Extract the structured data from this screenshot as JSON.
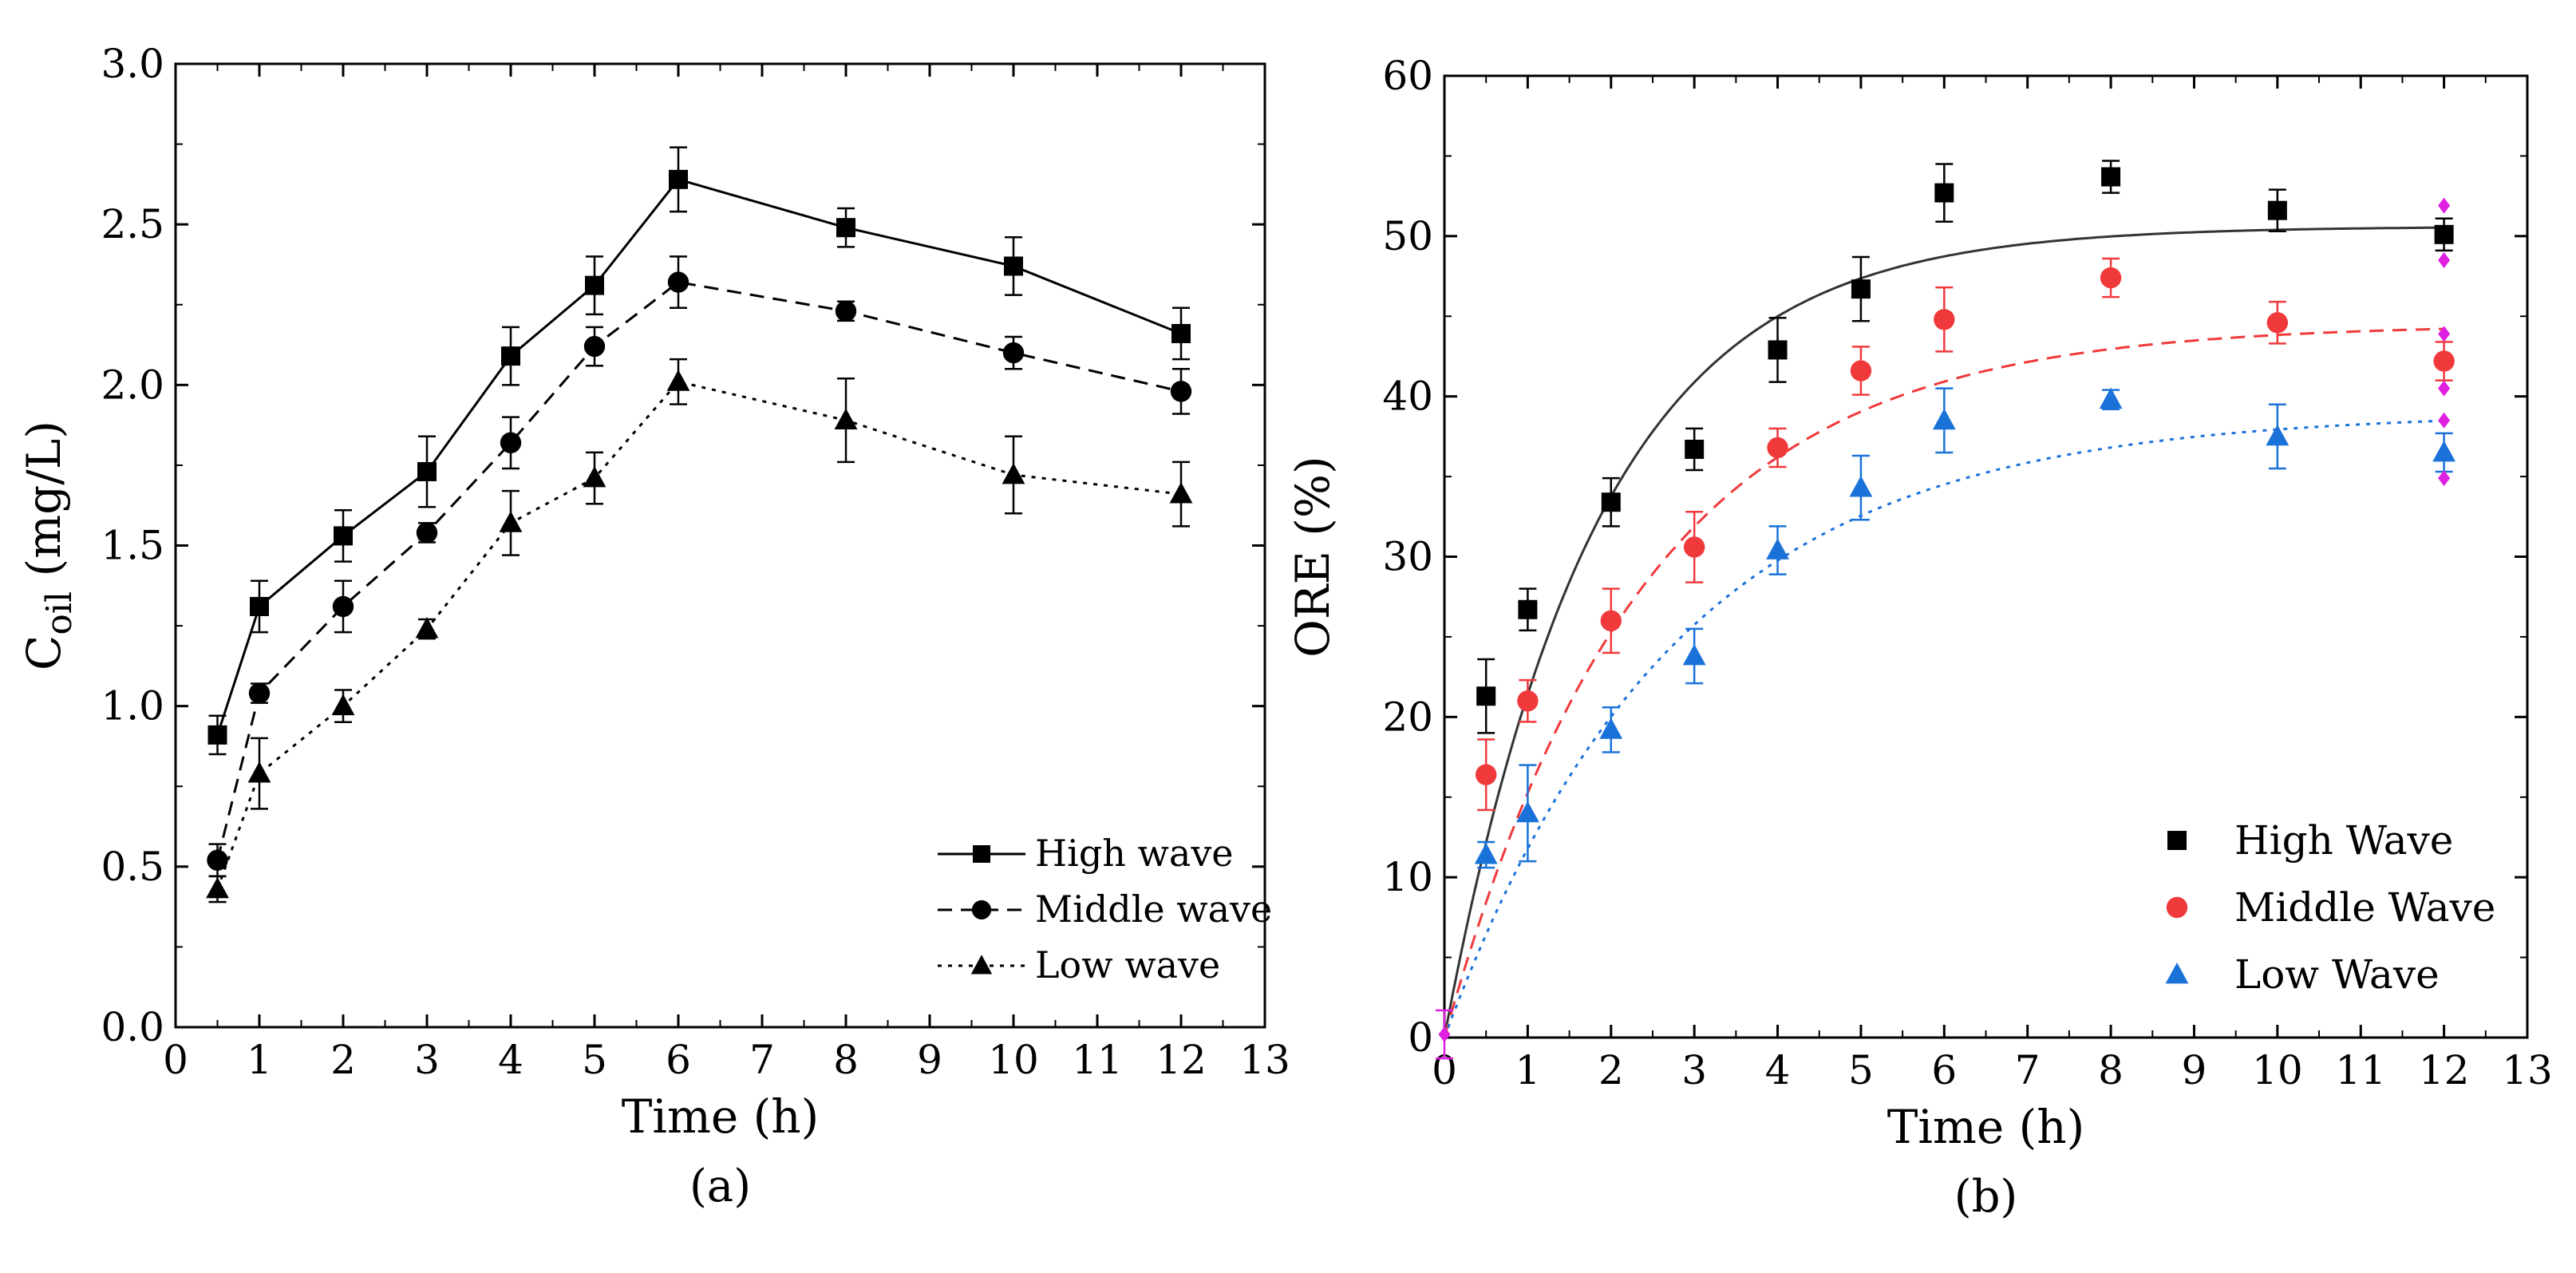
{
  "chart_data": [
    {
      "id": "a",
      "type": "line",
      "panel_label": "(a)",
      "xlabel": "Time (h)",
      "ylabel_main": "C",
      "ylabel_sub": "oil",
      "ylabel_unit": " (mg/L)",
      "xlim": [
        0,
        13
      ],
      "ylim": [
        0,
        3.0
      ],
      "xticks": [
        "0",
        "1",
        "2",
        "3",
        "4",
        "5",
        "6",
        "7",
        "8",
        "9",
        "10",
        "11",
        "12",
        "13"
      ],
      "yticks": [
        "0.0",
        "0.5",
        "1.0",
        "1.5",
        "2.0",
        "2.5",
        "3.0"
      ],
      "legend_position": "bottom-right",
      "x": [
        0.5,
        1,
        2,
        3,
        4,
        5,
        6,
        8,
        10,
        12
      ],
      "series": [
        {
          "name": "High wave",
          "marker": "square",
          "line": "solid",
          "values": [
            0.91,
            1.31,
            1.53,
            1.73,
            2.09,
            2.31,
            2.64,
            2.49,
            2.37,
            2.16
          ],
          "errors": [
            0.06,
            0.08,
            0.08,
            0.11,
            0.09,
            0.09,
            0.1,
            0.06,
            0.09,
            0.08
          ]
        },
        {
          "name": "Middle wave",
          "marker": "circle",
          "line": "dashed",
          "values": [
            0.52,
            1.04,
            1.31,
            1.54,
            1.82,
            2.12,
            2.32,
            2.23,
            2.1,
            1.98
          ],
          "errors": [
            0.05,
            0.03,
            0.08,
            0.03,
            0.08,
            0.06,
            0.08,
            0.03,
            0.05,
            0.07
          ]
        },
        {
          "name": "Low wave",
          "marker": "triangle",
          "line": "dotted",
          "values": [
            0.43,
            0.79,
            1.0,
            1.24,
            1.57,
            1.71,
            2.01,
            1.89,
            1.72,
            1.66
          ],
          "errors": [
            0.04,
            0.11,
            0.05,
            0.03,
            0.1,
            0.08,
            0.07,
            0.13,
            0.12,
            0.1
          ]
        }
      ]
    },
    {
      "id": "b",
      "type": "scatter",
      "panel_label": "(b)",
      "xlabel": "Time (h)",
      "ylabel": "ORE (%)",
      "xlim": [
        0,
        13
      ],
      "ylim": [
        0,
        60
      ],
      "xticks": [
        "0",
        "1",
        "2",
        "3",
        "4",
        "5",
        "6",
        "7",
        "8",
        "9",
        "10",
        "11",
        "12",
        "13"
      ],
      "yticks": [
        "0",
        "10",
        "20",
        "30",
        "40",
        "50",
        "60"
      ],
      "legend_position": "bottom-right",
      "x": [
        0.5,
        1,
        2,
        3,
        4,
        5,
        6,
        8,
        10,
        12
      ],
      "series": [
        {
          "name": "High Wave",
          "marker": "square",
          "color": "#000000",
          "fit_line": "solid",
          "fit_color": "#333333",
          "fit_asymptote": 50.6,
          "fit_rate": 0.55,
          "values": [
            21.3,
            26.7,
            33.4,
            36.7,
            42.9,
            46.7,
            52.7,
            53.7,
            51.6,
            50.1
          ],
          "errors": [
            2.3,
            1.3,
            1.5,
            1.3,
            2.0,
            2.0,
            1.8,
            1.0,
            1.3,
            1.0
          ]
        },
        {
          "name": "Middle Wave",
          "marker": "circle",
          "color": "#f0393b",
          "fit_line": "dashed",
          "fit_color": "#f0393b",
          "fit_asymptote": 44.5,
          "fit_rate": 0.42,
          "values": [
            16.4,
            21.0,
            26.0,
            30.6,
            36.8,
            41.6,
            44.8,
            47.4,
            44.6,
            42.2
          ],
          "errors": [
            2.2,
            1.3,
            2.0,
            2.2,
            1.2,
            1.5,
            2.0,
            1.2,
            1.3,
            1.2
          ]
        },
        {
          "name": "Low Wave",
          "marker": "triangle",
          "color": "#1a72d9",
          "fit_line": "dotted",
          "fit_color": "#1a72d9",
          "fit_asymptote": 39.0,
          "fit_rate": 0.36,
          "values": [
            11.4,
            14.0,
            19.2,
            23.8,
            30.4,
            34.3,
            38.5,
            39.8,
            37.5,
            36.5
          ],
          "errors": [
            0.8,
            3.0,
            1.4,
            1.7,
            1.5,
            2.0,
            2.0,
            0.6,
            2.0,
            1.2
          ]
        },
        {
          "name": "",
          "marker": "diamond",
          "color": "#e020e0",
          "x": [
            0,
            12,
            12,
            12,
            12,
            12,
            12
          ],
          "values": [
            0.2,
            51.9,
            48.5,
            43.9,
            40.5,
            38.5,
            34.9
          ],
          "errors": [
            1.5,
            0,
            0,
            0,
            0,
            0,
            0
          ]
        }
      ]
    }
  ]
}
